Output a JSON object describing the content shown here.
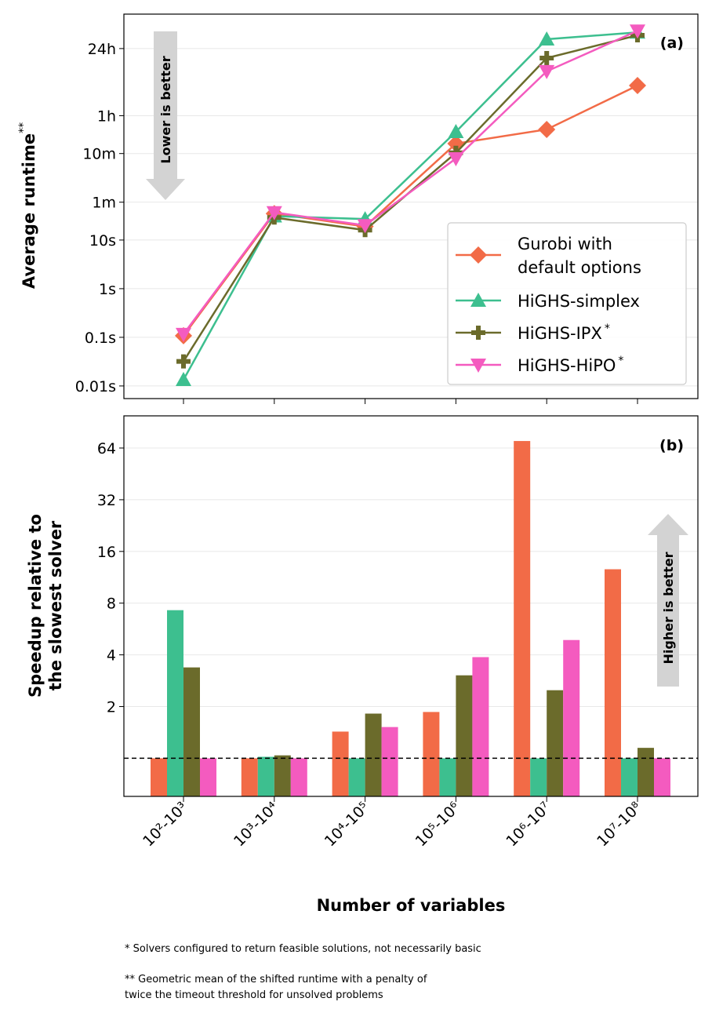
{
  "chart_data": [
    {
      "type": "line",
      "panel_label": "(a)",
      "ylabel": "Average runtime",
      "ylabel_sup": "**",
      "yscale": "log",
      "ylim_seconds": [
        0.0055,
        441000
      ],
      "yticks": [
        {
          "value": 0.01,
          "label": "0.01s"
        },
        {
          "value": 0.1,
          "label": "0.1s"
        },
        {
          "value": 1,
          "label": "1s"
        },
        {
          "value": 10,
          "label": "10s"
        },
        {
          "value": 60,
          "label": "1m"
        },
        {
          "value": 600,
          "label": "10m"
        },
        {
          "value": 3600,
          "label": "1h"
        },
        {
          "value": 86400,
          "label": "24h"
        }
      ],
      "grid": "horizontal",
      "legend_placement": "lower-right",
      "annotation": "Lower is better",
      "categories": [
        "10²-10³",
        "10³-10⁴",
        "10⁴-10⁵",
        "10⁵-10⁶",
        "10⁶-10⁷",
        "10⁷-10⁸"
      ],
      "series": [
        {
          "name": "Gurobi with default options",
          "legend_lines": [
            "Gurobi with",
            "default options"
          ],
          "sup": "",
          "marker": "diamond",
          "color": "#f26b47",
          "values": [
            0.108,
            35,
            19,
            960,
            1880,
            15000
          ]
        },
        {
          "name": "HiGHS-simplex",
          "legend_lines": [
            "HiGHS-simplex"
          ],
          "sup": "",
          "marker": "triangle-up",
          "color": "#3dbf8f",
          "values": [
            0.0134,
            31,
            27,
            1680,
            134600,
            186000
          ]
        },
        {
          "name": "HiGHS-IPX",
          "legend_lines": [
            "HiGHS-IPX"
          ],
          "sup": "*",
          "marker": "plus",
          "color": "#6b6b2b",
          "values": [
            0.032,
            29,
            16,
            620,
            55000,
            162000
          ]
        },
        {
          "name": "HiGHS-HiPO",
          "legend_lines": [
            "HiGHS-HiPO"
          ],
          "sup": "*",
          "marker": "triangle-down",
          "color": "#f45bbf",
          "values": [
            0.116,
            37,
            20,
            475,
            29400,
            200000
          ]
        }
      ]
    },
    {
      "type": "bar",
      "panel_label": "(b)",
      "ylabel_lines": [
        "Speedup relative to",
        "the slowest solver"
      ],
      "xlabel": "Number of variables",
      "yscale": "log2",
      "ylim": [
        0.6,
        98.5
      ],
      "yticks": [
        {
          "value": 2,
          "label": "2"
        },
        {
          "value": 4,
          "label": "4"
        },
        {
          "value": 8,
          "label": "8"
        },
        {
          "value": 16,
          "label": "16"
        },
        {
          "value": 32,
          "label": "32"
        },
        {
          "value": 64,
          "label": "64"
        }
      ],
      "reference_line": 1,
      "grid": "horizontal",
      "annotation": "Higher is better",
      "categories": [
        "10²-10³",
        "10³-10⁴",
        "10⁴-10⁵",
        "10⁵-10⁶",
        "10⁶-10⁷",
        "10⁷-10⁸"
      ],
      "series": [
        {
          "name": "Gurobi with default options",
          "color": "#f26b47",
          "values": [
            1,
            1,
            1.43,
            1.86,
            70.3,
            12.6
          ]
        },
        {
          "name": "HiGHS-simplex",
          "color": "#3dbf8f",
          "values": [
            7.28,
            1.02,
            1,
            1,
            1,
            1
          ]
        },
        {
          "name": "HiGHS-IPX",
          "color": "#6b6b2b",
          "values": [
            3.38,
            1.04,
            1.82,
            3.04,
            2.49,
            1.15
          ]
        },
        {
          "name": "HiGHS-HiPO",
          "color": "#f45bbf",
          "values": [
            1,
            1,
            1.52,
            3.88,
            4.88,
            1
          ]
        }
      ]
    }
  ],
  "footnotes": [
    "* Solvers configured to return feasible solutions, not necessarily basic",
    "** Geometric mean of the shifted runtime with a penalty of",
    "twice the timeout threshold for unsolved problems"
  ]
}
